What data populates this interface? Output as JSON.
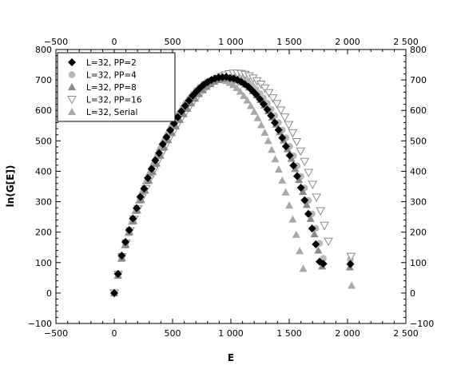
{
  "chart_data": {
    "type": "scatter",
    "title": "",
    "xlabel": "E",
    "ylabel": "ln(G[E])",
    "xlim": [
      -500,
      2500
    ],
    "ylim": [
      -100,
      800
    ],
    "xticks": [
      -500,
      0,
      500,
      1000,
      1500,
      2000,
      2500
    ],
    "yticks": [
      -100,
      0,
      100,
      200,
      300,
      400,
      500,
      600,
      700,
      800
    ],
    "xtick_labels": [
      "−500",
      "0",
      "500",
      "1 000",
      "1 500",
      "2 000",
      "2 500"
    ],
    "ytick_labels": [
      "−100",
      "0",
      "100",
      "200",
      "300",
      "400",
      "500",
      "600",
      "700",
      "800"
    ],
    "grid": false,
    "mirror_axes": true,
    "legend_position": "top-left",
    "series": [
      {
        "name": "L=32, PP=2",
        "marker": "diamond",
        "color": "#000000",
        "points": [
          [
            0,
            0
          ],
          [
            32,
            63
          ],
          [
            64,
            123
          ],
          [
            96,
            168
          ],
          [
            128,
            207
          ],
          [
            160,
            245
          ],
          [
            192,
            279
          ],
          [
            224,
            316
          ],
          [
            256,
            343
          ],
          [
            288,
            378
          ],
          [
            320,
            408
          ],
          [
            352,
            436
          ],
          [
            384,
            460
          ],
          [
            416,
            489
          ],
          [
            448,
            512
          ],
          [
            480,
            535
          ],
          [
            512,
            557
          ],
          [
            544,
            578
          ],
          [
            576,
            597
          ],
          [
            608,
            615
          ],
          [
            640,
            632
          ],
          [
            672,
            648
          ],
          [
            704,
            662
          ],
          [
            736,
            674
          ],
          [
            768,
            685
          ],
          [
            800,
            693
          ],
          [
            832,
            700
          ],
          [
            864,
            705
          ],
          [
            896,
            708
          ],
          [
            928,
            709
          ],
          [
            960,
            710
          ],
          [
            992,
            707
          ],
          [
            1024,
            705
          ],
          [
            1056,
            700
          ],
          [
            1088,
            694
          ],
          [
            1120,
            686
          ],
          [
            1152,
            677
          ],
          [
            1184,
            665
          ],
          [
            1216,
            652
          ],
          [
            1248,
            637
          ],
          [
            1280,
            621
          ],
          [
            1312,
            603
          ],
          [
            1344,
            583
          ],
          [
            1376,
            560
          ],
          [
            1408,
            536
          ],
          [
            1440,
            510
          ],
          [
            1472,
            482
          ],
          [
            1504,
            452
          ],
          [
            1536,
            419
          ],
          [
            1568,
            384
          ],
          [
            1600,
            346
          ],
          [
            1632,
            305
          ],
          [
            1664,
            260
          ],
          [
            1696,
            212
          ],
          [
            1728,
            160
          ],
          [
            1760,
            103
          ],
          [
            1792,
            96
          ],
          [
            2024,
            95
          ]
        ]
      },
      {
        "name": "L=32, PP=4",
        "marker": "circle",
        "color": "#b8b8b8",
        "points": [
          [
            0,
            0
          ],
          [
            32,
            60
          ],
          [
            64,
            118
          ],
          [
            96,
            162
          ],
          [
            128,
            203
          ],
          [
            160,
            240
          ],
          [
            192,
            275
          ],
          [
            224,
            310
          ],
          [
            256,
            340
          ],
          [
            288,
            372
          ],
          [
            320,
            402
          ],
          [
            352,
            430
          ],
          [
            384,
            456
          ],
          [
            416,
            483
          ],
          [
            448,
            508
          ],
          [
            480,
            530
          ],
          [
            512,
            552
          ],
          [
            544,
            573
          ],
          [
            576,
            592
          ],
          [
            608,
            610
          ],
          [
            640,
            628
          ],
          [
            672,
            643
          ],
          [
            704,
            658
          ],
          [
            736,
            671
          ],
          [
            768,
            682
          ],
          [
            800,
            691
          ],
          [
            832,
            699
          ],
          [
            864,
            704
          ],
          [
            896,
            709
          ],
          [
            928,
            712
          ],
          [
            960,
            713
          ],
          [
            992,
            713
          ],
          [
            1024,
            712
          ],
          [
            1056,
            709
          ],
          [
            1088,
            704
          ],
          [
            1120,
            698
          ],
          [
            1152,
            690
          ],
          [
            1184,
            680
          ],
          [
            1216,
            668
          ],
          [
            1248,
            655
          ],
          [
            1280,
            640
          ],
          [
            1312,
            623
          ],
          [
            1344,
            604
          ],
          [
            1376,
            583
          ],
          [
            1408,
            560
          ],
          [
            1440,
            536
          ],
          [
            1472,
            510
          ],
          [
            1504,
            482
          ],
          [
            1536,
            451
          ],
          [
            1568,
            418
          ],
          [
            1600,
            383
          ],
          [
            1632,
            345
          ],
          [
            1664,
            304
          ],
          [
            1696,
            260
          ],
          [
            1728,
            213
          ],
          [
            1760,
            163
          ],
          [
            1792,
            114
          ],
          [
            2024,
            110
          ]
        ]
      },
      {
        "name": "L=32, PP=8",
        "marker": "triangle-up",
        "color": "#8a8a8a",
        "points": [
          [
            0,
            0
          ],
          [
            33,
            58
          ],
          [
            66,
            115
          ],
          [
            99,
            159
          ],
          [
            132,
            200
          ],
          [
            165,
            237
          ],
          [
            198,
            272
          ],
          [
            231,
            306
          ],
          [
            264,
            337
          ],
          [
            297,
            369
          ],
          [
            330,
            398
          ],
          [
            363,
            426
          ],
          [
            396,
            452
          ],
          [
            429,
            479
          ],
          [
            462,
            503
          ],
          [
            495,
            526
          ],
          [
            528,
            548
          ],
          [
            561,
            569
          ],
          [
            594,
            588
          ],
          [
            627,
            606
          ],
          [
            660,
            624
          ],
          [
            693,
            639
          ],
          [
            726,
            654
          ],
          [
            759,
            667
          ],
          [
            792,
            678
          ],
          [
            825,
            687
          ],
          [
            858,
            695
          ],
          [
            891,
            700
          ],
          [
            924,
            703
          ],
          [
            957,
            705
          ],
          [
            990,
            705
          ],
          [
            1023,
            703
          ],
          [
            1056,
            699
          ],
          [
            1089,
            693
          ],
          [
            1122,
            686
          ],
          [
            1155,
            676
          ],
          [
            1188,
            664
          ],
          [
            1221,
            650
          ],
          [
            1254,
            635
          ],
          [
            1287,
            617
          ],
          [
            1320,
            598
          ],
          [
            1353,
            577
          ],
          [
            1386,
            554
          ],
          [
            1419,
            529
          ],
          [
            1452,
            502
          ],
          [
            1485,
            473
          ],
          [
            1518,
            442
          ],
          [
            1551,
            408
          ],
          [
            1584,
            372
          ],
          [
            1617,
            333
          ],
          [
            1650,
            290
          ],
          [
            1683,
            244
          ],
          [
            1716,
            194
          ],
          [
            1749,
            140
          ],
          [
            1782,
            88
          ],
          [
            2020,
            85
          ]
        ]
      },
      {
        "name": "L=32, PP=16",
        "marker": "triangle-down-open",
        "color": "#8a8a8a",
        "points": [
          [
            0,
            0
          ],
          [
            34,
            61
          ],
          [
            68,
            119
          ],
          [
            102,
            164
          ],
          [
            136,
            204
          ],
          [
            170,
            242
          ],
          [
            204,
            277
          ],
          [
            238,
            312
          ],
          [
            272,
            342
          ],
          [
            306,
            374
          ],
          [
            340,
            404
          ],
          [
            374,
            432
          ],
          [
            408,
            458
          ],
          [
            442,
            485
          ],
          [
            476,
            510
          ],
          [
            510,
            532
          ],
          [
            544,
            554
          ],
          [
            578,
            575
          ],
          [
            612,
            594
          ],
          [
            646,
            612
          ],
          [
            680,
            630
          ],
          [
            714,
            646
          ],
          [
            748,
            660
          ],
          [
            782,
            673
          ],
          [
            816,
            685
          ],
          [
            850,
            695
          ],
          [
            884,
            704
          ],
          [
            918,
            711
          ],
          [
            952,
            716
          ],
          [
            986,
            720
          ],
          [
            1020,
            722
          ],
          [
            1054,
            722
          ],
          [
            1088,
            721
          ],
          [
            1122,
            718
          ],
          [
            1156,
            713
          ],
          [
            1190,
            706
          ],
          [
            1224,
            697
          ],
          [
            1258,
            686
          ],
          [
            1292,
            673
          ],
          [
            1326,
            658
          ],
          [
            1360,
            641
          ],
          [
            1394,
            622
          ],
          [
            1428,
            601
          ],
          [
            1462,
            578
          ],
          [
            1496,
            553
          ],
          [
            1530,
            526
          ],
          [
            1564,
            497
          ],
          [
            1598,
            466
          ],
          [
            1632,
            432
          ],
          [
            1666,
            396
          ],
          [
            1700,
            357
          ],
          [
            1734,
            315
          ],
          [
            1768,
            270
          ],
          [
            1802,
            222
          ],
          [
            1836,
            170
          ],
          [
            2030,
            120
          ]
        ]
      },
      {
        "name": "L=32, Serial",
        "marker": "triangle-up",
        "color": "#a8a8a8",
        "points": [
          [
            0,
            0
          ],
          [
            30,
            57
          ],
          [
            60,
            113
          ],
          [
            90,
            157
          ],
          [
            120,
            198
          ],
          [
            150,
            235
          ],
          [
            180,
            270
          ],
          [
            210,
            304
          ],
          [
            240,
            335
          ],
          [
            270,
            367
          ],
          [
            300,
            396
          ],
          [
            330,
            424
          ],
          [
            360,
            450
          ],
          [
            390,
            477
          ],
          [
            420,
            501
          ],
          [
            450,
            524
          ],
          [
            480,
            546
          ],
          [
            510,
            567
          ],
          [
            540,
            586
          ],
          [
            570,
            604
          ],
          [
            600,
            622
          ],
          [
            630,
            637
          ],
          [
            660,
            652
          ],
          [
            690,
            665
          ],
          [
            720,
            676
          ],
          [
            750,
            685
          ],
          [
            780,
            693
          ],
          [
            810,
            698
          ],
          [
            840,
            701
          ],
          [
            870,
            703
          ],
          [
            900,
            703
          ],
          [
            930,
            701
          ],
          [
            960,
            697
          ],
          [
            990,
            691
          ],
          [
            1020,
            684
          ],
          [
            1050,
            674
          ],
          [
            1080,
            662
          ],
          [
            1110,
            648
          ],
          [
            1140,
            633
          ],
          [
            1170,
            615
          ],
          [
            1200,
            596
          ],
          [
            1230,
            575
          ],
          [
            1260,
            552
          ],
          [
            1290,
            527
          ],
          [
            1320,
            500
          ],
          [
            1350,
            471
          ],
          [
            1380,
            440
          ],
          [
            1410,
            406
          ],
          [
            1440,
            370
          ],
          [
            1470,
            331
          ],
          [
            1500,
            288
          ],
          [
            1530,
            242
          ],
          [
            1560,
            192
          ],
          [
            1590,
            138
          ],
          [
            1620,
            80
          ],
          [
            2035,
            25
          ]
        ]
      }
    ]
  }
}
